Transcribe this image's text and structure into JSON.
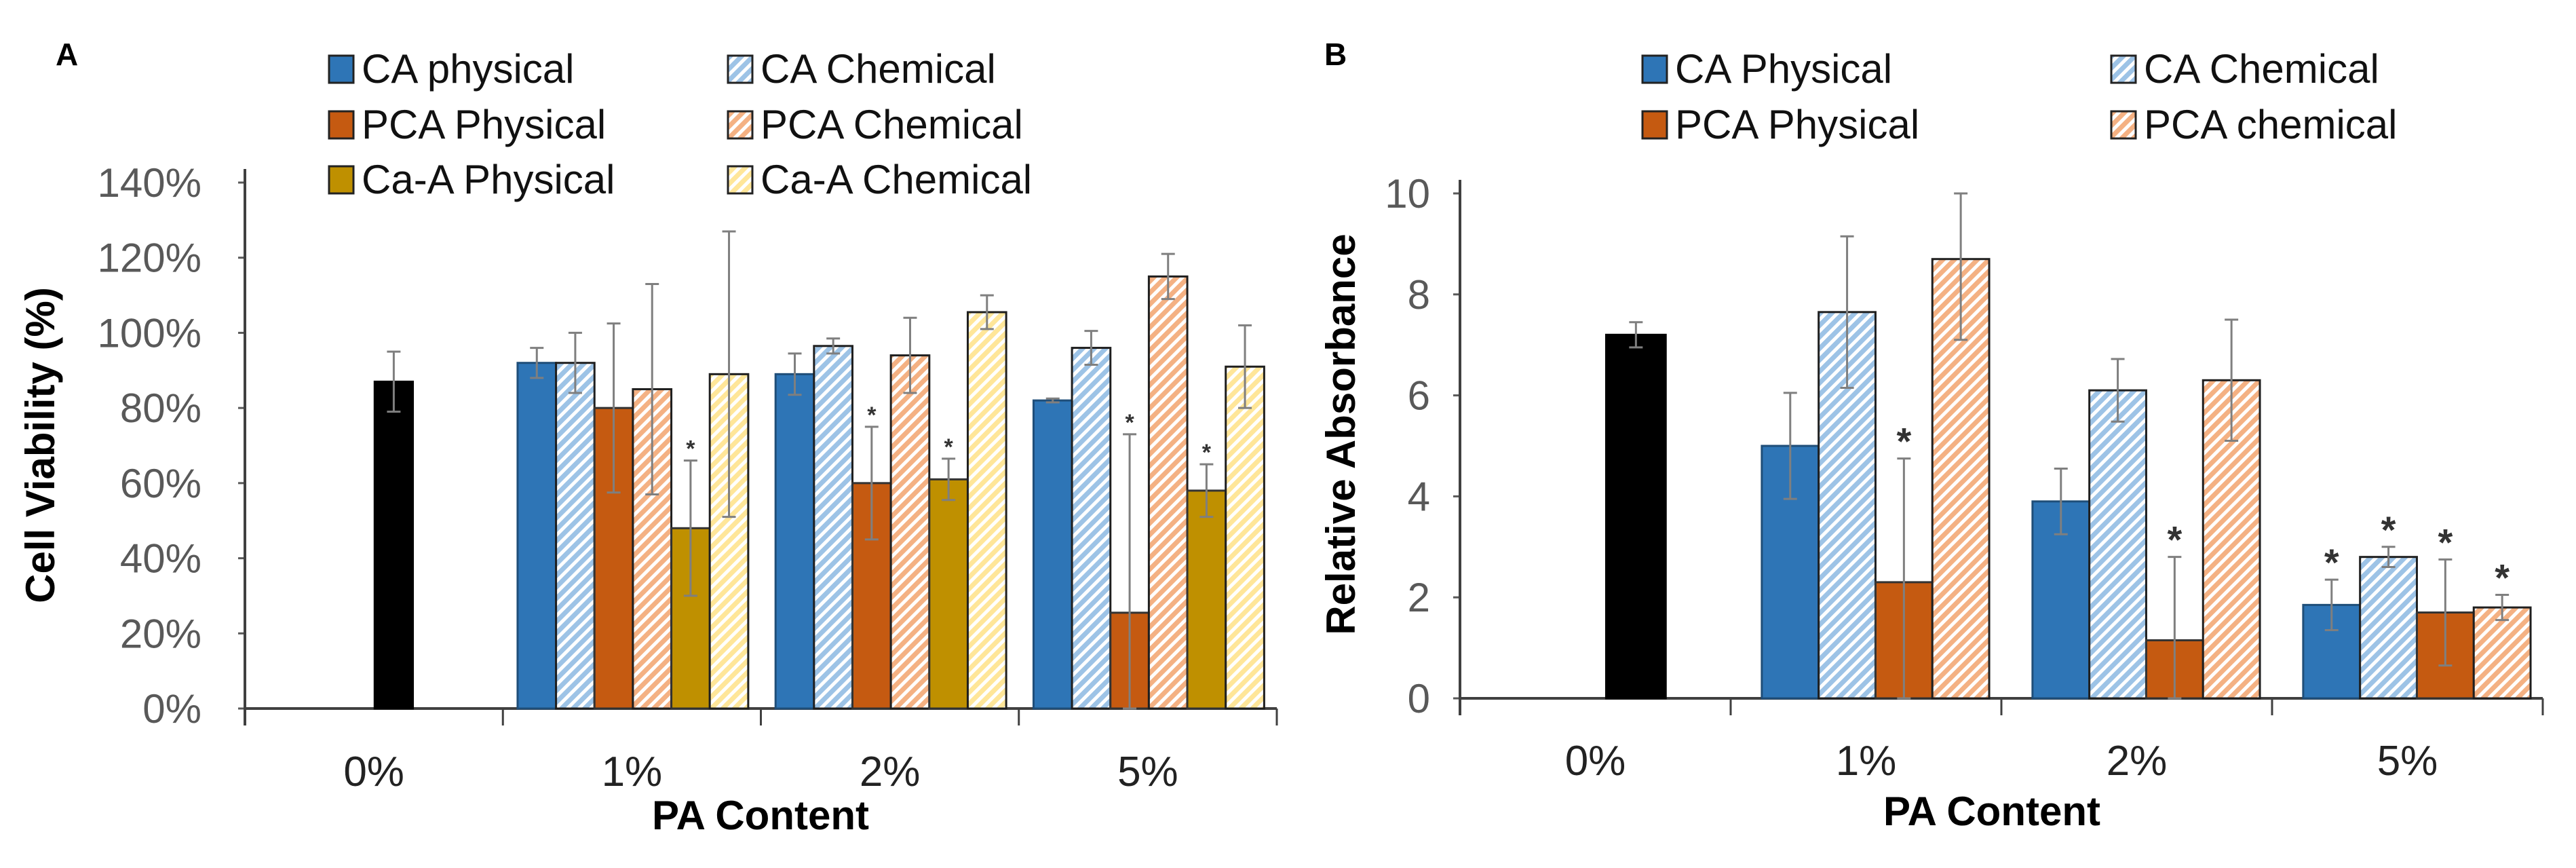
{
  "colors": {
    "black": "#000000",
    "ca_phys": "#2E75B6",
    "ca_chem": "#9DC3E6",
    "pca_phys": "#C55A11",
    "pca_chem": "#F4B183",
    "caa_phys": "#BF9000",
    "caa_chem": "#FFE699",
    "axis": "#595959",
    "error": "#7f7f7f"
  },
  "chart_data": [
    {
      "type": "bar",
      "panel": "A",
      "title": "",
      "xlabel": "PA Content",
      "ylabel": "Cell Viability (%)",
      "ylim": [
        0,
        140
      ],
      "yticks": [
        "0%",
        "20%",
        "40%",
        "60%",
        "80%",
        "100%",
        "120%",
        "140%"
      ],
      "categories": [
        "0%",
        "1%",
        "2%",
        "5%"
      ],
      "legend_position": "top",
      "control": {
        "category": "0%",
        "value": 87,
        "error": 8
      },
      "series": [
        {
          "name": "CA physical",
          "key": "ca_phys",
          "hatch": false,
          "values": [
            null,
            92,
            89,
            82
          ],
          "errors": [
            null,
            4,
            5.5,
            0.5
          ],
          "sig": [
            false,
            false,
            false,
            false
          ]
        },
        {
          "name": "CA Chemical",
          "key": "ca_chem",
          "hatch": true,
          "values": [
            null,
            92,
            96.5,
            96
          ],
          "errors": [
            null,
            8,
            2,
            4.5
          ],
          "sig": [
            false,
            false,
            false,
            false
          ]
        },
        {
          "name": "PCA Physical",
          "key": "pca_phys",
          "hatch": false,
          "values": [
            null,
            80,
            60,
            25.5
          ],
          "errors": [
            null,
            22.5,
            15,
            47.5
          ],
          "sig": [
            false,
            false,
            true,
            true
          ]
        },
        {
          "name": "PCA Chemical",
          "key": "pca_chem",
          "hatch": true,
          "values": [
            null,
            85,
            94,
            115
          ],
          "errors": [
            null,
            28,
            10,
            6
          ],
          "sig": [
            false,
            false,
            false,
            false
          ]
        },
        {
          "name": "Ca-A Physical",
          "key": "caa_phys",
          "hatch": false,
          "values": [
            null,
            48,
            61,
            58
          ],
          "errors": [
            null,
            18,
            5.5,
            7
          ],
          "sig": [
            false,
            true,
            true,
            true
          ]
        },
        {
          "name": "Ca-A Chemical",
          "key": "caa_chem",
          "hatch": true,
          "values": [
            null,
            89,
            105.5,
            91
          ],
          "errors": [
            null,
            38,
            4.5,
            11
          ],
          "sig": [
            false,
            false,
            false,
            false
          ]
        }
      ]
    },
    {
      "type": "bar",
      "panel": "B",
      "title": "",
      "xlabel": "PA Content",
      "ylabel": "Relative Absorbance",
      "ylim": [
        0,
        10
      ],
      "yticks": [
        "0",
        "2",
        "4",
        "6",
        "8",
        "10"
      ],
      "categories": [
        "0%",
        "1%",
        "2%",
        "5%"
      ],
      "legend_position": "top",
      "control": {
        "category": "0%",
        "value": 7.2,
        "error": 0.25
      },
      "series": [
        {
          "name": "CA Physical",
          "key": "ca_phys",
          "hatch": false,
          "values": [
            null,
            5.0,
            3.9,
            1.85
          ],
          "errors": [
            null,
            1.05,
            0.65,
            0.5
          ],
          "sig": [
            false,
            false,
            false,
            true
          ]
        },
        {
          "name": "CA Chemical",
          "key": "ca_chem",
          "hatch": true,
          "values": [
            null,
            7.65,
            6.1,
            2.8
          ],
          "errors": [
            null,
            1.5,
            0.62,
            0.2
          ],
          "sig": [
            false,
            false,
            false,
            true
          ]
        },
        {
          "name": "PCA Physical",
          "key": "pca_phys",
          "hatch": false,
          "values": [
            null,
            2.3,
            1.15,
            1.7
          ],
          "errors": [
            null,
            2.45,
            1.65,
            1.05
          ],
          "sig": [
            false,
            true,
            true,
            true
          ]
        },
        {
          "name": "PCA chemical",
          "key": "pca_chem",
          "hatch": true,
          "values": [
            null,
            8.7,
            6.3,
            1.8
          ],
          "errors": [
            null,
            1.6,
            1.2,
            0.25
          ],
          "sig": [
            false,
            false,
            false,
            true
          ]
        }
      ]
    }
  ],
  "sig_marker": "*"
}
